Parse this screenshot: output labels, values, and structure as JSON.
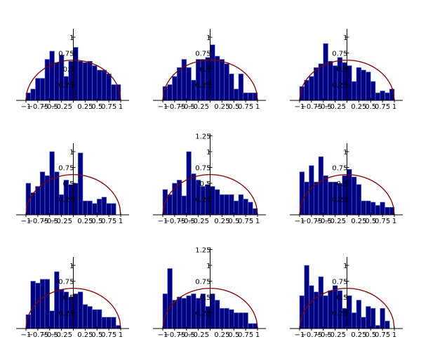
{
  "style": {
    "bar_fill": "#000080",
    "bar_edge": "#5a7ad0",
    "curve": "#7b0000",
    "axis": "#000000"
  },
  "chart_data": [
    {
      "type": "bar",
      "overlay": "semicircle",
      "bins": 20,
      "xlim": [
        -1,
        1
      ],
      "ylim": [
        0,
        1.1
      ],
      "x_ticks": [
        "−1",
        "−0.75",
        "−0.5",
        "−0.25",
        "0",
        "0.25",
        "0.5",
        "0.75",
        "1"
      ],
      "y_ticks": [
        {
          "v": 0.25,
          "label": "0.25"
        },
        {
          "v": 0.5,
          "label": "0.5"
        },
        {
          "v": 0.75,
          "label": "0.75"
        },
        {
          "v": 1,
          "label": "1"
        }
      ],
      "values": [
        0.12,
        0.18,
        0.35,
        0.35,
        0.65,
        0.78,
        0.6,
        0.72,
        0.38,
        0.62,
        0.84,
        0.62,
        0.6,
        0.62,
        0.55,
        0.48,
        0.48,
        0.42,
        0.25,
        0.25
      ]
    },
    {
      "type": "bar",
      "overlay": "semicircle",
      "bins": 20,
      "xlim": [
        -1,
        1
      ],
      "ylim": [
        0,
        1.1
      ],
      "x_ticks": [
        "−1",
        "−0.75",
        "−0.5",
        "−0.25",
        "0",
        "0.25",
        "0.5",
        "0.75",
        "1"
      ],
      "y_ticks": [
        {
          "v": 0.25,
          "label": "0.25"
        },
        {
          "v": 0.5,
          "label": "0.5"
        },
        {
          "v": 0.75,
          "label": "0.75"
        },
        {
          "v": 1,
          "label": "1"
        }
      ],
      "values": [
        0.22,
        0.25,
        0.38,
        0.52,
        0.65,
        0.52,
        0.32,
        0.65,
        0.65,
        0.68,
        0.88,
        0.7,
        0.65,
        0.58,
        0.42,
        0.18,
        0.42,
        0.12,
        0.12,
        0.12
      ]
    },
    {
      "type": "bar",
      "overlay": "semicircle",
      "bins": 20,
      "xlim": [
        -1,
        1
      ],
      "ylim": [
        0,
        1.1
      ],
      "x_ticks": [
        "−1",
        "−0.75",
        "−0.5",
        "−0.25",
        "0",
        "0.25",
        "0.5",
        "0.75",
        "1"
      ],
      "y_ticks": [
        {
          "v": 0.25,
          "label": "0.25"
        },
        {
          "v": 0.5,
          "label": "0.5"
        },
        {
          "v": 0.75,
          "label": "0.75"
        },
        {
          "v": 1,
          "label": "1"
        }
      ],
      "values": [
        0.22,
        0.32,
        0.38,
        0.52,
        0.58,
        0.9,
        0.62,
        0.55,
        0.68,
        0.6,
        0.55,
        0.3,
        0.52,
        0.48,
        0.45,
        0.3,
        0.12,
        0.15,
        0.12,
        0.18
      ]
    },
    {
      "type": "bar",
      "overlay": "semicircle",
      "bins": 20,
      "xlim": [
        -1,
        1
      ],
      "ylim": [
        0,
        1.1
      ],
      "x_ticks": [
        "−1",
        "−0.75",
        "−0.5",
        "−0.25",
        "0",
        "0.25",
        "0.5",
        "0.75",
        "1"
      ],
      "y_ticks": [
        {
          "v": 0.25,
          "label": "0.25"
        },
        {
          "v": 0.5,
          "label": "0.5"
        },
        {
          "v": 0.75,
          "label": "0.75"
        },
        {
          "v": 1,
          "label": "1"
        }
      ],
      "values": [
        0.5,
        0.35,
        0.45,
        0.68,
        0.62,
        1.0,
        0.68,
        0.32,
        0.55,
        0.48,
        0.5,
        0.98,
        0.22,
        0.22,
        0.18,
        0.25,
        0.28,
        0.18,
        0.18,
        0.0
      ]
    },
    {
      "type": "bar",
      "overlay": "semicircle",
      "bins": 20,
      "xlim": [
        -1,
        1
      ],
      "ylim": [
        0,
        1.25
      ],
      "x_ticks": [
        "−1",
        "−0.75",
        "−0.5",
        "−0.25",
        "0",
        "0.25",
        "0.5",
        "0.75",
        "1"
      ],
      "y_ticks": [
        {
          "v": 0.25,
          "label": "0.25"
        },
        {
          "v": 0.5,
          "label": "0.5"
        },
        {
          "v": 0.75,
          "label": "0.75"
        },
        {
          "v": 1,
          "label": "1"
        },
        {
          "v": 1.25,
          "label": "1.25"
        }
      ],
      "values": [
        0.4,
        0.32,
        0.5,
        0.55,
        0.3,
        1.0,
        0.65,
        0.55,
        0.45,
        0.48,
        0.45,
        0.4,
        0.32,
        0.32,
        0.32,
        0.22,
        0.32,
        0.25,
        0.2,
        0.1
      ]
    },
    {
      "type": "bar",
      "overlay": "semicircle",
      "bins": 20,
      "xlim": [
        -1,
        1
      ],
      "ylim": [
        0,
        1.1
      ],
      "x_ticks": [
        "−1",
        "−0.75",
        "−0.5",
        "−0.25",
        "0",
        "0.25",
        "0.5",
        "0.75",
        "1"
      ],
      "y_ticks": [
        {
          "v": 0.25,
          "label": "0.25"
        },
        {
          "v": 0.5,
          "label": "0.5"
        },
        {
          "v": 0.75,
          "label": "0.75"
        },
        {
          "v": 1,
          "label": "1"
        }
      ],
      "values": [
        0.68,
        0.52,
        0.78,
        0.52,
        0.92,
        0.62,
        0.52,
        0.52,
        0.5,
        0.62,
        0.72,
        0.6,
        0.48,
        0.22,
        0.22,
        0.2,
        0.15,
        0.2,
        0.12,
        0.12
      ]
    },
    {
      "type": "bar",
      "overlay": "semicircle",
      "bins": 20,
      "xlim": [
        -1,
        1
      ],
      "ylim": [
        0,
        1.1
      ],
      "x_ticks": [
        "−1",
        "−0.75",
        "−0.5",
        "−0.25",
        "0",
        "0.25",
        "0.5",
        "0.75",
        "1"
      ],
      "y_ticks": [
        {
          "v": 0.25,
          "label": "0.25"
        },
        {
          "v": 0.5,
          "label": "0.5"
        },
        {
          "v": 0.75,
          "label": "0.75"
        },
        {
          "v": 1,
          "label": "1"
        }
      ],
      "values": [
        0.22,
        0.75,
        0.72,
        0.78,
        0.78,
        0.28,
        0.9,
        0.62,
        0.58,
        0.5,
        0.55,
        0.58,
        0.38,
        0.35,
        0.3,
        0.3,
        0.18,
        0.18,
        0.18,
        0.05
      ]
    },
    {
      "type": "bar",
      "overlay": "semicircle",
      "bins": 20,
      "xlim": [
        -1,
        1
      ],
      "ylim": [
        0,
        1.25
      ],
      "x_ticks": [
        "−1",
        "−0.75",
        "−0.5",
        "−0.25",
        "0",
        "0.25",
        "0.5",
        "0.75",
        "1"
      ],
      "y_ticks": [
        {
          "v": 0.25,
          "label": "0.25"
        },
        {
          "v": 0.5,
          "label": "0.5"
        },
        {
          "v": 0.75,
          "label": "0.75"
        },
        {
          "v": 1,
          "label": "1"
        },
        {
          "v": 1.25,
          "label": "1.25"
        }
      ],
      "values": [
        0.55,
        0.95,
        0.45,
        0.5,
        0.48,
        0.52,
        0.55,
        0.48,
        0.55,
        0.35,
        0.55,
        0.45,
        0.32,
        0.32,
        0.3,
        0.25,
        0.25,
        0.25,
        0.08,
        0.08
      ]
    },
    {
      "type": "bar",
      "overlay": "semicircle",
      "bins": 20,
      "xlim": [
        -1,
        1
      ],
      "ylim": [
        0,
        1.1
      ],
      "x_ticks": [
        "−1",
        "−0.75",
        "−0.5",
        "−0.25",
        "0",
        "0.25",
        "0.5",
        "0.75",
        "1"
      ],
      "y_ticks": [
        {
          "v": 0.25,
          "label": "0.25"
        },
        {
          "v": 0.5,
          "label": "0.5"
        },
        {
          "v": 0.75,
          "label": "0.75"
        },
        {
          "v": 1,
          "label": "1"
        }
      ],
      "values": [
        0.52,
        1.0,
        0.68,
        0.58,
        0.82,
        0.52,
        0.6,
        0.68,
        0.6,
        0.32,
        0.52,
        0.25,
        0.45,
        0.18,
        0.35,
        0.32,
        0.05,
        0.32,
        0.12,
        0.0
      ]
    }
  ]
}
